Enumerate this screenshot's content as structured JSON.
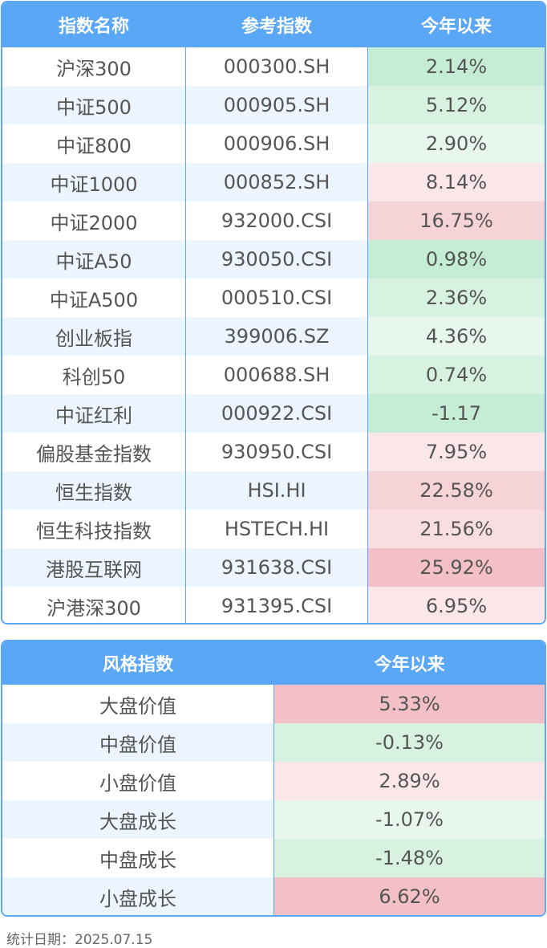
{
  "table1": {
    "headers": [
      "指数名称",
      "参考指数",
      "今年以来"
    ],
    "rows": [
      {
        "name": "沪深300",
        "code": "000300.SH",
        "value": "2.14%",
        "color": "#c5ecd4"
      },
      {
        "name": "中证500",
        "code": "000905.SH",
        "value": "5.12%",
        "color": "#d8f2e2"
      },
      {
        "name": "中证800",
        "code": "000906.SH",
        "value": "2.90%",
        "color": "#e8f7ee"
      },
      {
        "name": "中证1000",
        "code": "000852.SH",
        "value": "8.14%",
        "color": "#fbe7ea"
      },
      {
        "name": "中证2000",
        "code": "932000.CSI",
        "value": "16.75%",
        "color": "#f5d3d7"
      },
      {
        "name": "中证A50",
        "code": "930050.CSI",
        "value": "0.98%",
        "color": "#c5ecd4"
      },
      {
        "name": "中证A500",
        "code": "000510.CSI",
        "value": "2.36%",
        "color": "#d8f2e2"
      },
      {
        "name": "创业板指",
        "code": "399006.SZ",
        "value": "4.36%",
        "color": "#e8f7ee"
      },
      {
        "name": "科创50",
        "code": "000688.SH",
        "value": "0.74%",
        "color": "#d8f2e2"
      },
      {
        "name": "中证红利",
        "code": "000922.CSI",
        "value": "-1.17",
        "color": "#c5ecd4"
      },
      {
        "name": "偏股基金指数",
        "code": "930950.CSI",
        "value": "7.95%",
        "color": "#fbe7ea"
      },
      {
        "name": "恒生指数",
        "code": "HSI.HI",
        "value": "22.58%",
        "color": "#f5d3d7"
      },
      {
        "name": "恒生科技指数",
        "code": "HSTECH.HI",
        "value": "21.56%",
        "color": "#f8dde1"
      },
      {
        "name": "港股互联网",
        "code": "931638.CSI",
        "value": "25.92%",
        "color": "#f2c0c6"
      },
      {
        "name": "沪港深300",
        "code": "931395.CSI",
        "value": "6.95%",
        "color": "#fbe7ea"
      }
    ]
  },
  "table2": {
    "headers": [
      "风格指数",
      "今年以来"
    ],
    "rows": [
      {
        "name": "大盘价值",
        "value": "5.33%",
        "color": "#f2c0c6"
      },
      {
        "name": "中盘价值",
        "value": "-0.13%",
        "color": "#d8f2e2"
      },
      {
        "name": "小盘价值",
        "value": "2.89%",
        "color": "#fbe7ea"
      },
      {
        "name": "大盘成长",
        "value": "-1.07%",
        "color": "#e8f7ee"
      },
      {
        "name": "中盘成长",
        "value": "-1.48%",
        "color": "#d8f2e2"
      },
      {
        "name": "小盘成长",
        "value": "6.62%",
        "color": "#f2c0c6"
      }
    ]
  },
  "footer": "统计日期：2025.07.15"
}
